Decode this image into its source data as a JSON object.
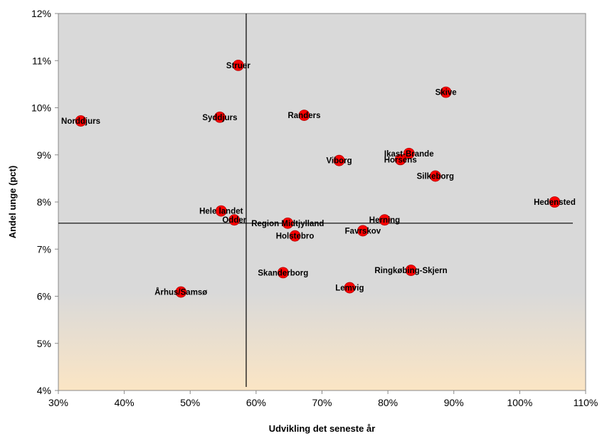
{
  "chart_data": {
    "type": "scatter",
    "title": "",
    "xlabel": "Udvikling det seneste år",
    "ylabel": "Andel unge (pct)",
    "xlim": [
      30,
      110
    ],
    "ylim": [
      4,
      12
    ],
    "x_ticks": [
      "30%",
      "40%",
      "50%",
      "60%",
      "70%",
      "80%",
      "90%",
      "100%",
      "110%"
    ],
    "y_ticks": [
      "4%",
      "5%",
      "6%",
      "7%",
      "8%",
      "9%",
      "10%",
      "11%",
      "12%"
    ],
    "reference_lines": {
      "x": 58.5,
      "y": 7.55
    },
    "grid": false,
    "legend": "none",
    "point_color": "#ff0000",
    "background_top": "#d9d9d9",
    "background_bottom": "#fbe5c4",
    "points": [
      {
        "name": "Struer",
        "x": 57.3,
        "y": 10.9
      },
      {
        "name": "Skive",
        "x": 88.8,
        "y": 10.33
      },
      {
        "name": "Norddjurs",
        "x": 33.4,
        "y": 9.72
      },
      {
        "name": "Syddjurs",
        "x": 54.5,
        "y": 9.8
      },
      {
        "name": "Randers",
        "x": 67.3,
        "y": 9.84
      },
      {
        "name": "Viborg",
        "x": 72.6,
        "y": 8.88
      },
      {
        "name": "Ikast-Brande",
        "x": 83.2,
        "y": 9.03
      },
      {
        "name": "Horsens",
        "x": 81.9,
        "y": 8.9
      },
      {
        "name": "Silkeborg",
        "x": 87.2,
        "y": 8.55
      },
      {
        "name": "Hedensted",
        "x": 105.3,
        "y": 8.0
      },
      {
        "name": "Herning",
        "x": 79.5,
        "y": 7.62
      },
      {
        "name": "Hele landet",
        "x": 54.7,
        "y": 7.81
      },
      {
        "name": "Odder",
        "x": 56.7,
        "y": 7.62
      },
      {
        "name": "Region Midtjylland",
        "x": 64.8,
        "y": 7.55
      },
      {
        "name": "Favrskov",
        "x": 76.2,
        "y": 7.39
      },
      {
        "name": "Holstebro",
        "x": 65.9,
        "y": 7.28
      },
      {
        "name": "Skanderborg",
        "x": 64.1,
        "y": 6.5
      },
      {
        "name": "Ringkøbing-Skjern",
        "x": 83.5,
        "y": 6.55
      },
      {
        "name": "Lemvig",
        "x": 74.2,
        "y": 6.18
      },
      {
        "name": "Århus/Samsø",
        "x": 48.6,
        "y": 6.09
      }
    ]
  }
}
